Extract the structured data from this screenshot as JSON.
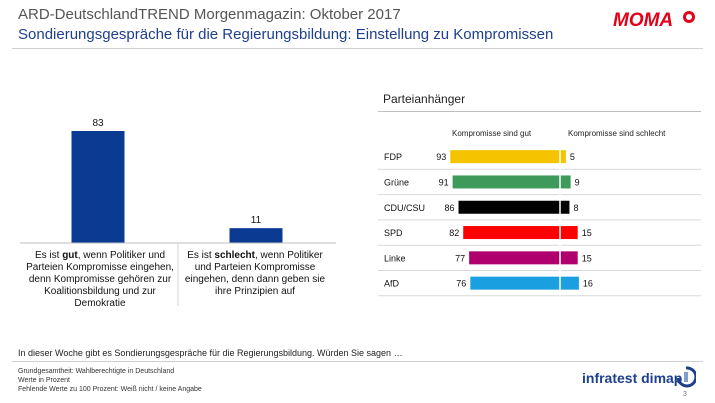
{
  "header": {
    "title": "ARD-DeutschlandTREND Morgenmagazin: Oktober 2017",
    "subtitle": "Sondierungsgespräche für die Regierungsbildung: Einstellung zu Kompromissen",
    "logo_text": "MOMA"
  },
  "colors": {
    "accent_blue": "#1e3f8f",
    "bar_blue": "#0b3a93",
    "logo_red": "#e2001a"
  },
  "chart_data": [
    {
      "type": "bar",
      "categories": [
        "Es ist gut, wenn Politiker und Parteien Kompromisse eingehen, denn Kompromisse gehören zur Koalitionsbildung und zur Demokratie",
        "Es ist schlecht, wenn Politiker und Parteien Kompromisse eingehen, denn dann geben sie ihre Prinzipien auf"
      ],
      "values": [
        83,
        11
      ],
      "ylim": [
        0,
        100
      ],
      "category_parts": [
        [
          "Es ist ",
          "gut",
          ", wenn Politiker und Parteien Kompromisse eingehen, denn Kompromisse gehören zur Koalitionsbildung und zur Demokratie"
        ],
        [
          "Es ist ",
          "schlecht",
          ", wenn Politiker und Parteien Kompromisse eingehen, denn dann geben sie ihre Prinzipien auf"
        ]
      ]
    },
    {
      "type": "bar",
      "title": "Parteianhänger",
      "orientation": "horizontal-diverging",
      "categories": [
        "FDP",
        "Grüne",
        "CDU/CSU",
        "SPD",
        "Linke",
        "AfD"
      ],
      "series": [
        {
          "name": "Kompromisse sind gut",
          "values": [
            93,
            91,
            86,
            82,
            77,
            76
          ]
        },
        {
          "name": "Kompromisse sind schlecht",
          "values": [
            5,
            9,
            8,
            15,
            15,
            16
          ]
        }
      ],
      "bar_colors": [
        "#f5c400",
        "#3e9a5b",
        "#000000",
        "#ff0000",
        "#b0006e",
        "#1a9fe0"
      ]
    }
  ],
  "footer": {
    "intro": "In dieser Woche gibt es Sondierungsgespräche für die Regierungsbildung.  Würden Sie sagen …",
    "notes": [
      "Grundgesamtheit:  Wahlberechtigte in Deutschland",
      "Werte in Prozent",
      "Fehlende Werte zu 100 Prozent: Weiß nicht / keine Angabe"
    ],
    "brand": "infratest dimap",
    "page_number": "3"
  }
}
